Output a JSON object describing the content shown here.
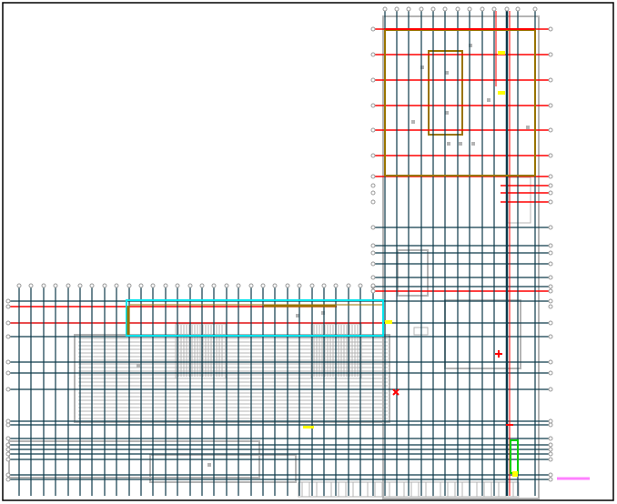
{
  "drawing": {
    "colors": {
      "grid_line": "#0d3a4a",
      "axis_red": "#ff0000",
      "outline_gray": "#b4b4b4",
      "beam_brown": "#9a7400",
      "highlight_cyan": "#00e5ee",
      "marker_yellow": "#ffff00",
      "marker_green": "#00cc00",
      "scale_magenta": "#ff80ff",
      "frame": "#000000"
    }
  }
}
